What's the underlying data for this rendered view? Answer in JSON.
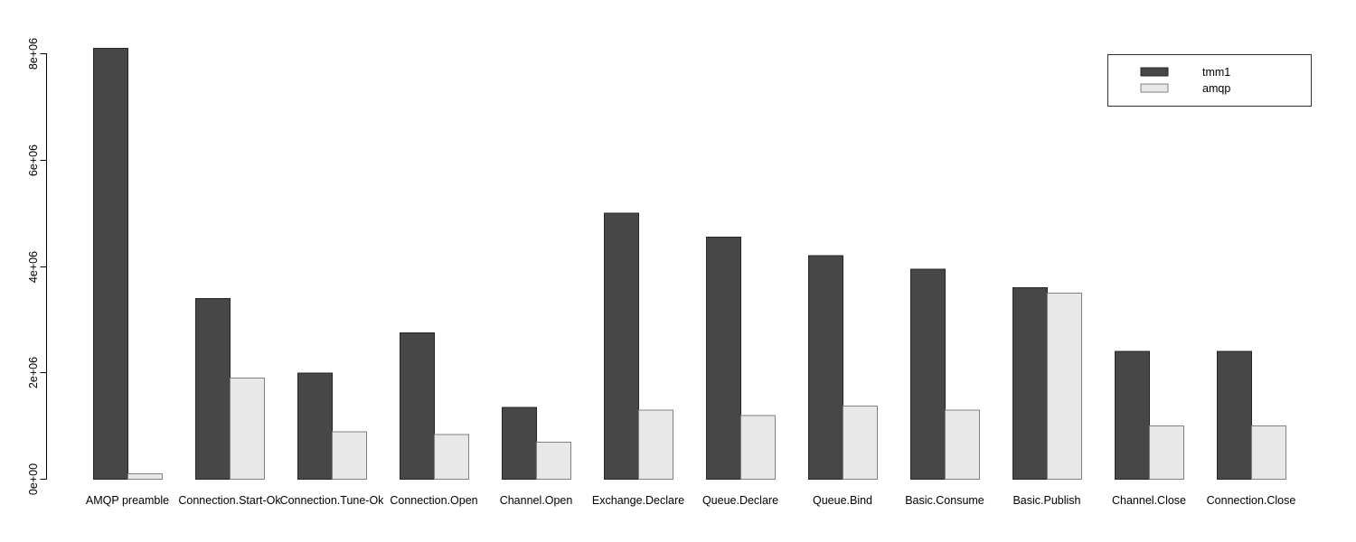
{
  "chart_data": {
    "type": "bar",
    "title": "",
    "xlabel": "",
    "ylabel": "",
    "categories": [
      "AMQP preamble",
      "Connection.Start-Ok",
      "Connection.Tune-Ok",
      "Connection.Open",
      "Channel.Open",
      "Exchange.Declare",
      "Queue.Declare",
      "Queue.Bind",
      "Basic.Consume",
      "Basic.Publish",
      "Channel.Close",
      "Connection.Close"
    ],
    "series": [
      {
        "name": "tmm1",
        "fill": "#474747",
        "border": "#262626",
        "values": [
          8100000,
          3400000,
          2000000,
          2750000,
          1350000,
          5000000,
          4550000,
          4200000,
          3950000,
          3600000,
          2400000,
          2400000
        ]
      },
      {
        "name": "amqp",
        "fill": "#e8e8e8",
        "border": "#808080",
        "values": [
          100000,
          1900000,
          890000,
          840000,
          700000,
          1300000,
          1200000,
          1380000,
          1300000,
          3500000,
          1000000,
          1000000
        ]
      }
    ],
    "ylim": [
      0,
      8000000
    ],
    "yticks": [
      {
        "value": 0,
        "label": "0e+00"
      },
      {
        "value": 2000000,
        "label": "2e+06"
      },
      {
        "value": 4000000,
        "label": "4e+06"
      },
      {
        "value": 6000000,
        "label": "6e+06"
      },
      {
        "value": 8000000,
        "label": "8e+06"
      }
    ],
    "grid": false,
    "legend": {
      "position": "top-right",
      "items": [
        "tmm1",
        "amqp"
      ]
    },
    "colors": {
      "axis": "#000000",
      "text": "#000000",
      "background": "#ffffff",
      "legend_border": "#333333"
    }
  }
}
